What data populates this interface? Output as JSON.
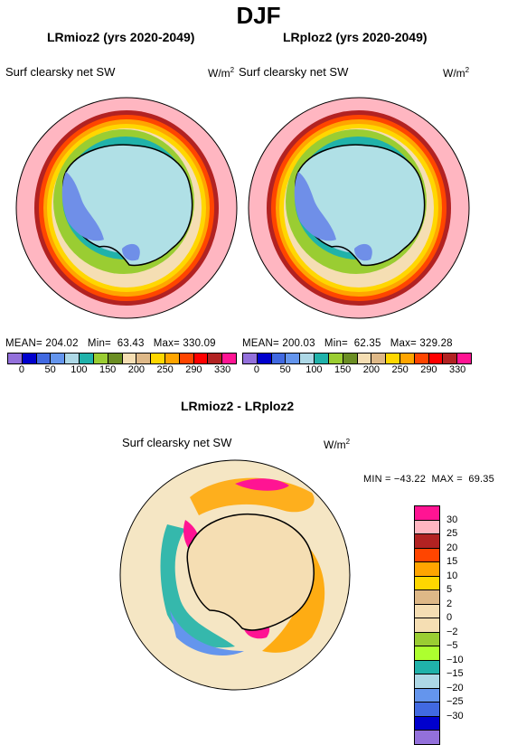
{
  "title": "DJF",
  "panels": [
    {
      "title": "LRmioz2 (yrs 2020-2049)",
      "variable": "Surf clearsky net SW",
      "unit_base": "W/m",
      "unit_exp": "2",
      "mean_label": "MEAN=",
      "mean": "204.02",
      "min_label": "Min=",
      "min": "63.43",
      "max_label": "Max=",
      "max": "330.09"
    },
    {
      "title": "LRploz2 (yrs 2020-2049)",
      "variable": "Surf clearsky net SW",
      "unit_base": "W/m",
      "unit_exp": "2",
      "mean_label": "MEAN=",
      "mean": "200.03",
      "min_label": "Min=",
      "min": "62.35",
      "max_label": "Max=",
      "max": "329.28"
    }
  ],
  "top_colorbar": {
    "colors": [
      "#9370db",
      "#0000cd",
      "#4169e1",
      "#6495ed",
      "#add8e6",
      "#20b2aa",
      "#9acd32",
      "#6b8e23",
      "#f5deb3",
      "#deb887",
      "#ffd700",
      "#ffa500",
      "#ff4500",
      "#ff0000",
      "#b22222",
      "#ff1493"
    ],
    "tick_labels": [
      "0",
      "50",
      "100",
      "150",
      "200",
      "250",
      "290",
      "330"
    ]
  },
  "diff": {
    "title": "LRmioz2 - LRploz2",
    "variable": "Surf clearsky net SW",
    "unit_base": "W/m",
    "unit_exp": "2",
    "minmax": "MIN = −43.22  MAX =  69.35"
  },
  "diff_colorbar": {
    "colors": [
      "#ff1493",
      "#ffb6c1",
      "#b22222",
      "#ff4500",
      "#ffa500",
      "#ffd700",
      "#deb887",
      "#f5deb3",
      "#f5deb3",
      "#9acd32",
      "#adff2f",
      "#20b2aa",
      "#add8e6",
      "#6495ed",
      "#4169e1",
      "#0000cd",
      "#9370db"
    ],
    "labels": [
      "30",
      "25",
      "20",
      "15",
      "10",
      "5",
      "2",
      "0",
      "−2",
      "−5",
      "−10",
      "−15",
      "−20",
      "−25",
      "−30"
    ]
  },
  "map_colors": {
    "ocean_far": "#ffb6c1",
    "land": "#b0e0e6",
    "ice_shelf": "#6f8fe8",
    "coast": "#000000",
    "diff_bg": "#f5e6c4"
  }
}
